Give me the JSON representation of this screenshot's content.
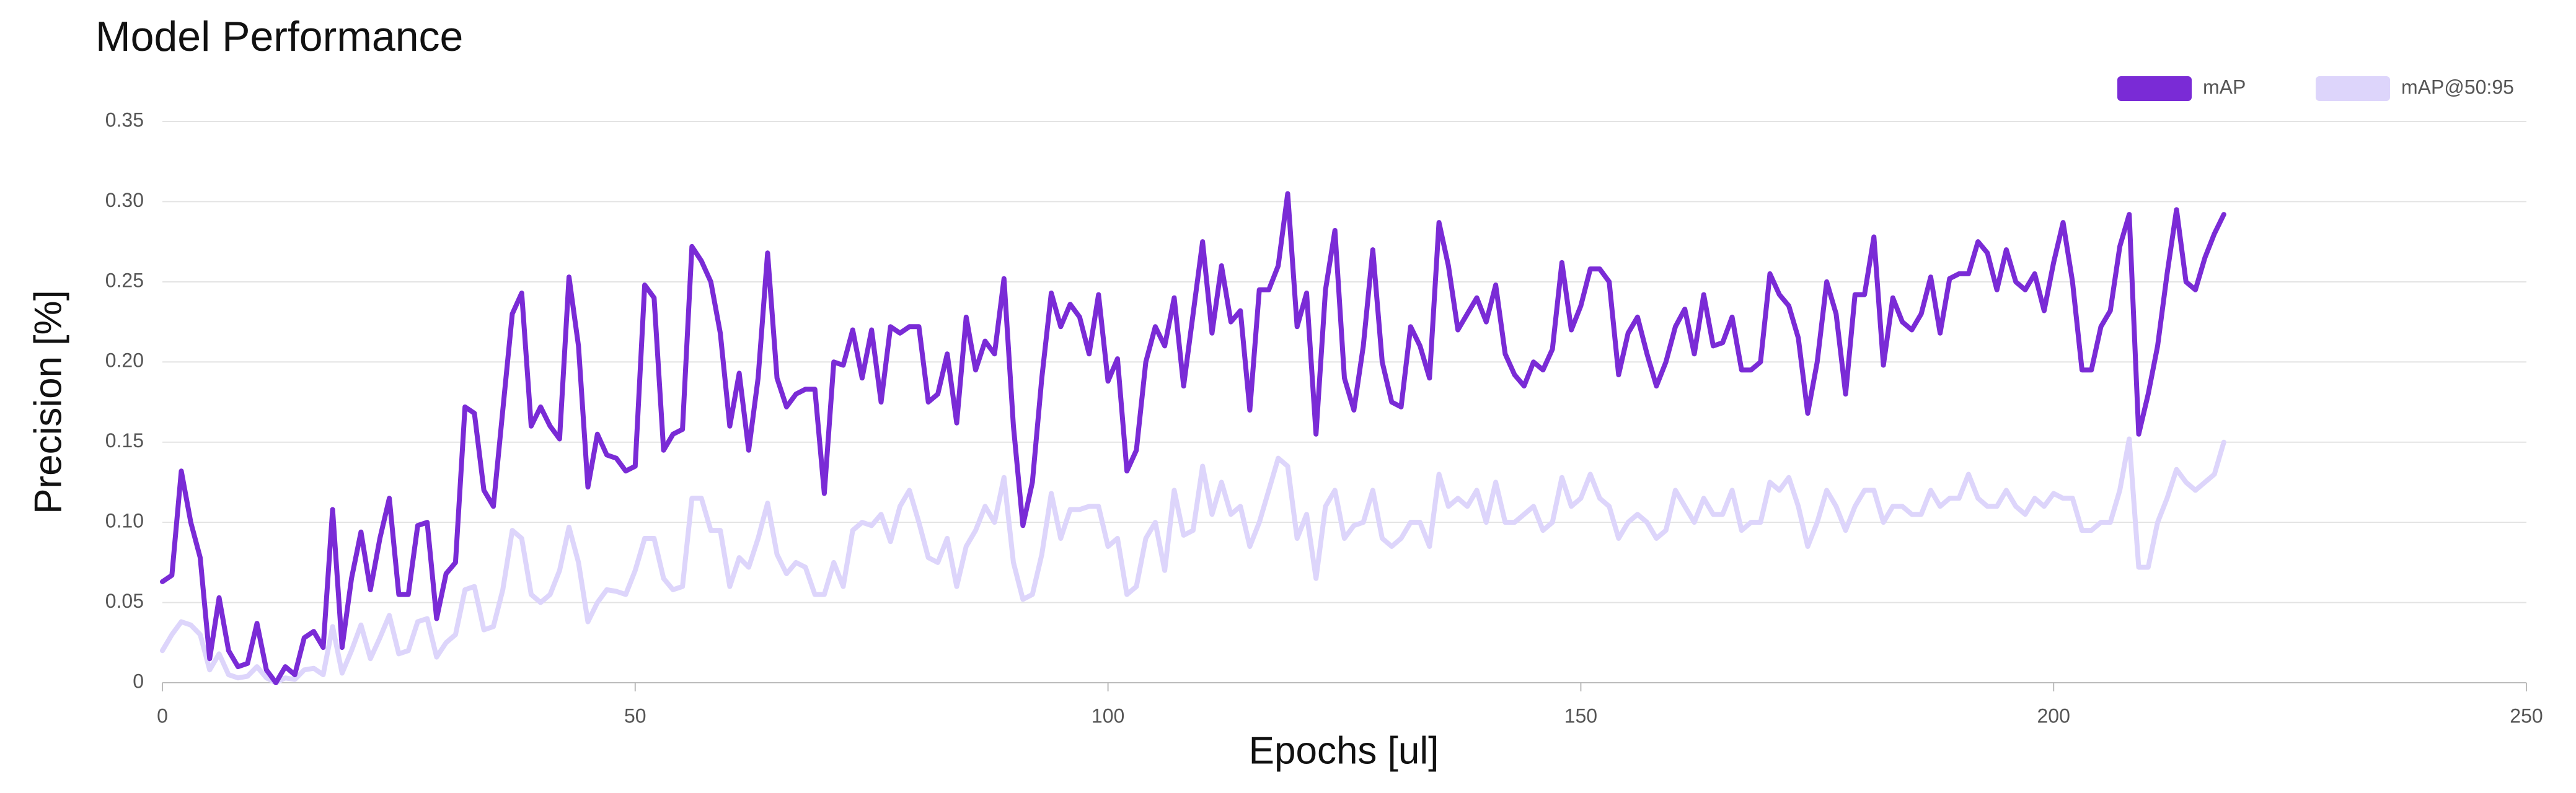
{
  "chart_data": {
    "type": "line",
    "title": "Model Performance",
    "x_label": "Epochs [ul]",
    "y_label": "Precision [%]",
    "legend": "top-right",
    "grid": true,
    "xlim": [
      0,
      250
    ],
    "xticks": [
      0,
      50,
      100,
      150,
      200,
      250
    ],
    "ylim": [
      0,
      0.35
    ],
    "yticks": [
      0,
      0.05,
      {
        "value": 0.1,
        "label": "0.10"
      },
      0.15,
      {
        "value": 0.2,
        "label": "0.20"
      },
      0.25,
      {
        "value": 0.3,
        "label": "0.30"
      },
      0.35
    ],
    "x": [
      0,
      1,
      2,
      3,
      4,
      5,
      6,
      7,
      8,
      9,
      10,
      11,
      12,
      13,
      14,
      15,
      16,
      17,
      18,
      19,
      20,
      21,
      22,
      23,
      24,
      25,
      26,
      27,
      28,
      29,
      30,
      31,
      32,
      33,
      34,
      35,
      36,
      37,
      38,
      39,
      40,
      41,
      42,
      43,
      44,
      45,
      46,
      47,
      48,
      49,
      50,
      51,
      52,
      53,
      54,
      55,
      56,
      57,
      58,
      59,
      60,
      61,
      62,
      63,
      64,
      65,
      66,
      67,
      68,
      69,
      70,
      71,
      72,
      73,
      74,
      75,
      76,
      77,
      78,
      79,
      80,
      81,
      82,
      83,
      84,
      85,
      86,
      87,
      88,
      89,
      90,
      91,
      92,
      93,
      94,
      95,
      96,
      97,
      98,
      99,
      100,
      101,
      102,
      103,
      104,
      105,
      106,
      107,
      108,
      109,
      110,
      111,
      112,
      113,
      114,
      115,
      116,
      117,
      118,
      119,
      120,
      121,
      122,
      123,
      124,
      125,
      126,
      127,
      128,
      129,
      130,
      131,
      132,
      133,
      134,
      135,
      136,
      137,
      138,
      139,
      140,
      141,
      142,
      143,
      144,
      145,
      146,
      147,
      148,
      149,
      150,
      151,
      152,
      153,
      154,
      155,
      156,
      157,
      158,
      159,
      160,
      161,
      162,
      163,
      164,
      165,
      166,
      167,
      168,
      169,
      170,
      171,
      172,
      173,
      174,
      175,
      176,
      177,
      178,
      179,
      180,
      181,
      182,
      183,
      184,
      185,
      186,
      187,
      188,
      189,
      190,
      191,
      192,
      193,
      194,
      195,
      196,
      197,
      198,
      199,
      200,
      201,
      202,
      203,
      204,
      205,
      206,
      207,
      208,
      209,
      210,
      211,
      212,
      213,
      214,
      215,
      216,
      217,
      218
    ],
    "series": [
      {
        "name": "mAP",
        "color": "#7a2bd6",
        "values": [
          0.063,
          0.067,
          0.132,
          0.1,
          0.078,
          0.015,
          0.053,
          0.02,
          0.01,
          0.012,
          0.037,
          0.008,
          0.0,
          0.01,
          0.005,
          0.028,
          0.032,
          0.022,
          0.108,
          0.022,
          0.065,
          0.094,
          0.058,
          0.09,
          0.115,
          0.055,
          0.055,
          0.098,
          0.1,
          0.04,
          0.068,
          0.075,
          0.172,
          0.168,
          0.12,
          0.11,
          0.17,
          0.23,
          0.243,
          0.16,
          0.172,
          0.16,
          0.152,
          0.253,
          0.21,
          0.122,
          0.155,
          0.142,
          0.14,
          0.132,
          0.135,
          0.248,
          0.24,
          0.145,
          0.155,
          0.158,
          0.272,
          0.263,
          0.25,
          0.218,
          0.16,
          0.193,
          0.145,
          0.19,
          0.268,
          0.19,
          0.172,
          0.18,
          0.183,
          0.183,
          0.118,
          0.2,
          0.198,
          0.22,
          0.19,
          0.22,
          0.175,
          0.222,
          0.218,
          0.222,
          0.222,
          0.175,
          0.18,
          0.205,
          0.162,
          0.228,
          0.195,
          0.213,
          0.205,
          0.252,
          0.16,
          0.098,
          0.125,
          0.19,
          0.243,
          0.222,
          0.236,
          0.228,
          0.205,
          0.242,
          0.188,
          0.202,
          0.132,
          0.145,
          0.2,
          0.222,
          0.21,
          0.24,
          0.185,
          0.23,
          0.275,
          0.218,
          0.26,
          0.225,
          0.232,
          0.17,
          0.245,
          0.245,
          0.26,
          0.305,
          0.222,
          0.243,
          0.155,
          0.245,
          0.282,
          0.19,
          0.17,
          0.21,
          0.27,
          0.2,
          0.175,
          0.172,
          0.222,
          0.21,
          0.19,
          0.287,
          0.26,
          0.22,
          0.23,
          0.24,
          0.225,
          0.248,
          0.205,
          0.192,
          0.185,
          0.2,
          0.195,
          0.208,
          0.262,
          0.22,
          0.235,
          0.258,
          0.258,
          0.25,
          0.192,
          0.218,
          0.228,
          0.205,
          0.185,
          0.2,
          0.222,
          0.233,
          0.205,
          0.242,
          0.21,
          0.212,
          0.228,
          0.195,
          0.195,
          0.2,
          0.255,
          0.242,
          0.235,
          0.215,
          0.168,
          0.2,
          0.25,
          0.23,
          0.18,
          0.242,
          0.242,
          0.278,
          0.198,
          0.24,
          0.225,
          0.22,
          0.23,
          0.253,
          0.218,
          0.252,
          0.255,
          0.255,
          0.275,
          0.268,
          0.245,
          0.27,
          0.25,
          0.245,
          0.255,
          0.232,
          0.262,
          0.287,
          0.25,
          0.195,
          0.195,
          0.222,
          0.232,
          0.272,
          0.292,
          0.155,
          0.18,
          0.21,
          0.255,
          0.295,
          0.25,
          0.245,
          0.265,
          0.28,
          0.292
        ]
      },
      {
        "name": "mAP@50:95",
        "color": "#ddd5fb",
        "values": [
          0.02,
          0.03,
          0.038,
          0.036,
          0.03,
          0.008,
          0.018,
          0.005,
          0.003,
          0.004,
          0.01,
          0.003,
          0.0,
          0.003,
          0.002,
          0.008,
          0.009,
          0.005,
          0.035,
          0.006,
          0.02,
          0.036,
          0.015,
          0.028,
          0.042,
          0.018,
          0.02,
          0.038,
          0.04,
          0.016,
          0.025,
          0.03,
          0.058,
          0.06,
          0.033,
          0.035,
          0.058,
          0.095,
          0.09,
          0.055,
          0.05,
          0.055,
          0.07,
          0.097,
          0.075,
          0.038,
          0.05,
          0.058,
          0.057,
          0.055,
          0.07,
          0.09,
          0.09,
          0.065,
          0.058,
          0.06,
          0.115,
          0.115,
          0.095,
          0.095,
          0.06,
          0.078,
          0.072,
          0.09,
          0.112,
          0.08,
          0.068,
          0.075,
          0.072,
          0.055,
          0.055,
          0.075,
          0.06,
          0.095,
          0.1,
          0.098,
          0.105,
          0.088,
          0.11,
          0.12,
          0.1,
          0.078,
          0.075,
          0.09,
          0.06,
          0.085,
          0.095,
          0.11,
          0.1,
          0.128,
          0.075,
          0.052,
          0.055,
          0.08,
          0.118,
          0.09,
          0.108,
          0.108,
          0.11,
          0.11,
          0.085,
          0.09,
          0.055,
          0.06,
          0.09,
          0.1,
          0.07,
          0.12,
          0.092,
          0.095,
          0.135,
          0.105,
          0.125,
          0.105,
          0.11,
          0.085,
          0.1,
          0.12,
          0.14,
          0.135,
          0.09,
          0.105,
          0.065,
          0.11,
          0.12,
          0.09,
          0.098,
          0.1,
          0.12,
          0.09,
          0.085,
          0.09,
          0.1,
          0.1,
          0.085,
          0.13,
          0.11,
          0.115,
          0.11,
          0.12,
          0.1,
          0.125,
          0.1,
          0.1,
          0.105,
          0.11,
          0.095,
          0.1,
          0.128,
          0.11,
          0.115,
          0.13,
          0.115,
          0.11,
          0.09,
          0.1,
          0.105,
          0.1,
          0.09,
          0.095,
          0.12,
          0.11,
          0.1,
          0.115,
          0.105,
          0.105,
          0.12,
          0.095,
          0.1,
          0.1,
          0.125,
          0.12,
          0.128,
          0.11,
          0.085,
          0.1,
          0.12,
          0.11,
          0.095,
          0.11,
          0.12,
          0.12,
          0.1,
          0.11,
          0.11,
          0.105,
          0.105,
          0.12,
          0.11,
          0.115,
          0.115,
          0.13,
          0.115,
          0.11,
          0.11,
          0.12,
          0.11,
          0.105,
          0.115,
          0.11,
          0.118,
          0.115,
          0.115,
          0.095,
          0.095,
          0.1,
          0.1,
          0.12,
          0.152,
          0.072,
          0.072,
          0.1,
          0.115,
          0.133,
          0.125,
          0.12,
          0.125,
          0.13,
          0.15
        ]
      }
    ]
  }
}
